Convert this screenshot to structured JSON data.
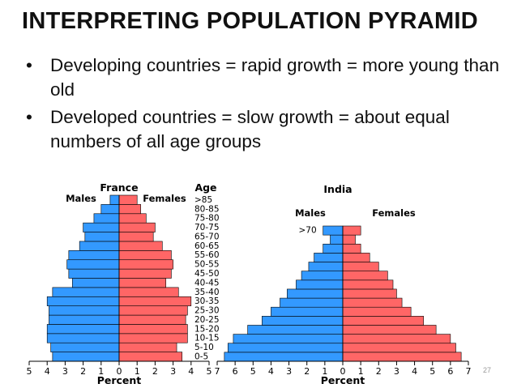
{
  "title": "INTERPRETING POPULATION PYRAMID",
  "bullets": [
    "Developing countries = rapid growth = more young than old",
    "Developed countries = slow growth = about equal numbers of all age groups"
  ],
  "page_number": "27",
  "colors": {
    "male": "#3399ff",
    "female": "#ff6666",
    "outline": "#000000"
  },
  "chart_data": [
    {
      "type": "bar",
      "subtype": "population-pyramid",
      "title": "France",
      "age_header": "Age",
      "male_label": "Males",
      "female_label": "Females",
      "xlabel": "Percent",
      "xticks": [
        "5",
        "4",
        "3",
        "2",
        "1",
        "0",
        "1",
        "2",
        "3",
        "4",
        "5"
      ],
      "xlim": [
        -5,
        5
      ],
      "categories": [
        "0-5",
        "5-10",
        "10-15",
        "15-20",
        "20-25",
        "25-30",
        "30-35",
        "35-40",
        "40-45",
        "45-50",
        "50-55",
        "55-60",
        "60-65",
        "65-70",
        "70-75",
        "75-80",
        "80-85",
        ">85"
      ],
      "series": [
        {
          "name": "Males",
          "values": [
            3.7,
            3.8,
            4.0,
            4.0,
            3.9,
            3.9,
            4.0,
            3.7,
            2.6,
            2.8,
            2.9,
            2.8,
            2.2,
            1.9,
            2.0,
            1.4,
            1.0,
            0.5
          ]
        },
        {
          "name": "Females",
          "values": [
            3.5,
            3.2,
            3.8,
            3.8,
            3.7,
            3.8,
            4.0,
            3.3,
            2.6,
            2.9,
            3.0,
            2.9,
            2.4,
            1.9,
            2.0,
            1.5,
            1.2,
            1.0
          ]
        }
      ]
    },
    {
      "type": "bar",
      "subtype": "population-pyramid",
      "title": "India",
      "male_label": "Males",
      "female_label": "Females",
      "xlabel": "Percent",
      "xticks": [
        "7",
        "6",
        "5",
        "4",
        "3",
        "2",
        "1",
        "0",
        "1",
        "2",
        "3",
        "4",
        "5",
        "6",
        "7"
      ],
      "xlim": [
        -7,
        7
      ],
      "categories": [
        "0-5",
        "5-10",
        "10-15",
        "15-20",
        "20-25",
        "25-30",
        "30-35",
        "35-40",
        "40-45",
        "45-50",
        "50-55",
        "55-60",
        "60-65",
        "65-70",
        ">70"
      ],
      "category_labels_shown": [
        ">70"
      ],
      "series": [
        {
          "name": "Males",
          "values": [
            6.6,
            6.4,
            6.1,
            5.3,
            4.5,
            4.0,
            3.5,
            3.1,
            2.6,
            2.3,
            1.9,
            1.6,
            1.1,
            0.7,
            1.1
          ]
        },
        {
          "name": "Females",
          "values": [
            6.6,
            6.3,
            6.0,
            5.2,
            4.5,
            3.8,
            3.3,
            3.0,
            2.8,
            2.5,
            2.0,
            1.5,
            1.0,
            0.7,
            1.0
          ]
        }
      ]
    }
  ]
}
